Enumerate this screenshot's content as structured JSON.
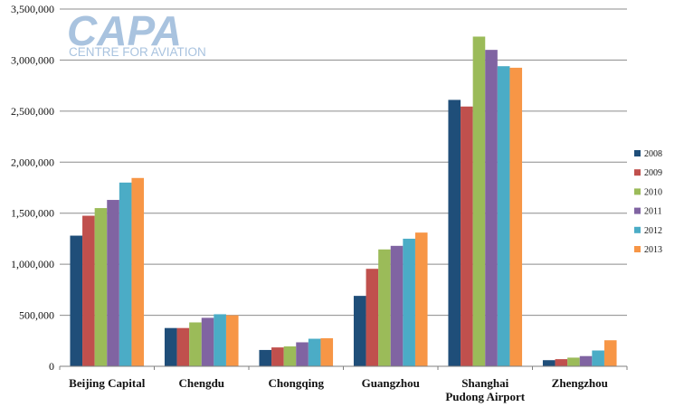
{
  "logo": {
    "main": "CAPA",
    "sub": "CENTRE FOR AVIATION"
  },
  "chart_data": {
    "type": "bar",
    "categories": [
      "Beijing Capital",
      "Chengdu",
      "Chongqing",
      "Guangzhou",
      "Shanghai Pudong Airport",
      "Zhengzhou"
    ],
    "category_lines": [
      [
        "Beijing Capital"
      ],
      [
        "Chengdu"
      ],
      [
        "Chongqing"
      ],
      [
        "Guangzhou"
      ],
      [
        "Shanghai",
        "Pudong Airport"
      ],
      [
        "Zhengzhou"
      ]
    ],
    "series": [
      {
        "name": "2008",
        "color": "#1f4e79",
        "values": [
          1280000,
          375000,
          160000,
          690000,
          2610000,
          60000
        ]
      },
      {
        "name": "2009",
        "color": "#c0504d",
        "values": [
          1475000,
          375000,
          185000,
          955000,
          2545000,
          70000
        ]
      },
      {
        "name": "2010",
        "color": "#9bbb59",
        "values": [
          1550000,
          430000,
          195000,
          1145000,
          3230000,
          85000
        ]
      },
      {
        "name": "2011",
        "color": "#8064a2",
        "values": [
          1630000,
          475000,
          235000,
          1180000,
          3100000,
          100000
        ]
      },
      {
        "name": "2012",
        "color": "#4bacc6",
        "values": [
          1800000,
          510000,
          270000,
          1250000,
          2940000,
          155000
        ]
      },
      {
        "name": "2013",
        "color": "#f79646",
        "values": [
          1845000,
          500000,
          275000,
          1310000,
          2925000,
          255000
        ]
      }
    ],
    "yticks": [
      "0",
      "500,000",
      "1,000,000",
      "1,500,000",
      "2,000,000",
      "2,500,000",
      "3,000,000",
      "3,500,000"
    ],
    "ylim": [
      0,
      3500000
    ],
    "grid": true,
    "legend_position": "right"
  }
}
